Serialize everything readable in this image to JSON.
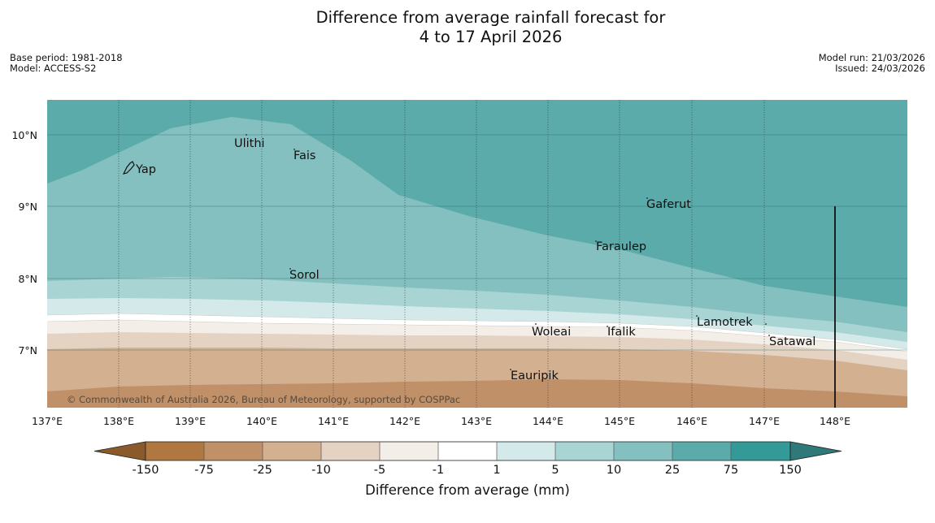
{
  "title": {
    "line1": "Difference from average rainfall forecast for",
    "line2": "4 to 17 April 2026"
  },
  "meta": {
    "base_period": "Base period: 1981-2018",
    "model": "Model: ACCESS-S2",
    "model_run": "Model run: 21/03/2026",
    "issued": "Issued: 24/03/2026"
  },
  "map": {
    "lat_labels": [
      "10°N",
      "9°N",
      "8°N",
      "7°N"
    ],
    "lon_labels": [
      "137°E",
      "138°E",
      "139°E",
      "140°E",
      "141°E",
      "142°E",
      "143°E",
      "144°E",
      "145°E",
      "146°E",
      "147°E",
      "148°E"
    ],
    "places": [
      "Yap",
      "Ulithi",
      "Fais",
      "Gaferut",
      "Faraulep",
      "Sorol",
      "Woleai",
      "Ifalik",
      "Lamotrek",
      "Satawal",
      "Eauripik"
    ],
    "copyright": "© Commonwealth of Australia 2026, Bureau of Meteorology, supported by COSPPac"
  },
  "colorbar": {
    "ticks": [
      "-150",
      "-75",
      "-25",
      "-10",
      "-5",
      "-1",
      "1",
      "5",
      "10",
      "25",
      "75",
      "150"
    ],
    "colors": [
      "#8b5a2b",
      "#b07840",
      "#c09068",
      "#d2b090",
      "#e4d2c2",
      "#f4eee8",
      "#ffffff",
      "#d4eaea",
      "#a8d4d4",
      "#84c0bf",
      "#5aabaa",
      "#349a98",
      "#2f7979"
    ],
    "title": "Difference from average (mm)"
  }
}
